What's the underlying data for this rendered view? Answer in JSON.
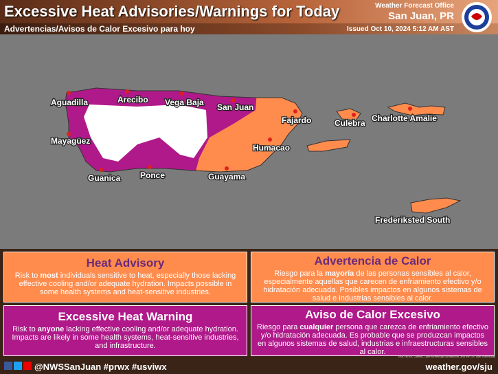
{
  "header": {
    "title": "Excessive Heat Advisories/Warnings for Today",
    "subtitle": "Advertencias/Avisos de Calor Excesivo para hoy",
    "office": "Weather Forecast Office",
    "location": "San Juan, PR",
    "issued": "Issued Oct 10, 2024 5:12 AM AST"
  },
  "map": {
    "labels": [
      "Aguadilla",
      "Arecibo",
      "Vega Baja",
      "San Juan",
      "Fajardo",
      "Culebra",
      "Charlotte Amalie",
      "Mayagüez",
      "Humacao",
      "Guanica",
      "Ponce",
      "Guayama",
      "Frederiksted South"
    ],
    "credits": "Esri, HERE, Garmin, OpenStreetMap contributors, and the GIS user community"
  },
  "panels": {
    "heat_advisory": {
      "title": "Heat Advisory",
      "text": [
        "Risk to ",
        "most",
        " individuals sensitive to heat, especially those lacking effective cooling and/or adequate hydration. Impacts possible in some health systems and heat-sensitive industries."
      ]
    },
    "advertencia": {
      "title": "Advertencia de Calor",
      "text": [
        "Riesgo para la ",
        "mayoría",
        " de las personas sensibles al calor, especialmente aquellas que carecen de enfriamiento efectivo y/o hidratación adecuada. Posibles impactos en algunos sistemas de salud e industrias sensibles al calor."
      ]
    },
    "excessive_heat_warning": {
      "title": "Excessive Heat Warning",
      "text": [
        "Risk to ",
        "anyone",
        " lacking effective cooling and/or adequate hydration. Impacts are likely in some health systems, heat-sensitive industries, and infrastructure."
      ]
    },
    "aviso": {
      "title": "Aviso de Calor Excesivo",
      "text": [
        "Riesgo para ",
        "cualquier",
        " persona que carezca de enfriamiento efectivo y/o hidratación adecuada. Es probable que se produzcan impactos en algunos sistemas de salud, industrias e infraestructuras sensibles al calor."
      ]
    }
  },
  "footer": {
    "social": "@NWSSanJuan #prwx #usviwx",
    "url": "weather.gov/sju"
  }
}
